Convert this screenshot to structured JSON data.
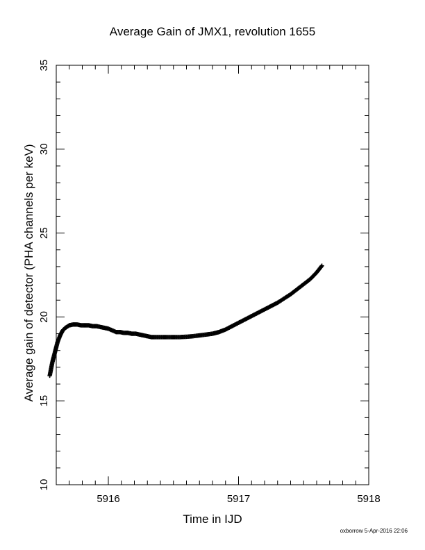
{
  "chart_data": {
    "type": "scatter",
    "title": "Average Gain of JMX1, revolution 1655",
    "xlabel": "Time in IJD",
    "ylabel": "Average gain of detector (PHA channels per keV)",
    "xlim": [
      5915.6,
      5918
    ],
    "ylim": [
      10,
      35
    ],
    "x_ticks": [
      5916,
      5917,
      5918
    ],
    "y_ticks": [
      10,
      15,
      20,
      25,
      30,
      35
    ],
    "marker": "plus",
    "color": "#000000",
    "grid": false,
    "legend": "none",
    "series": [
      {
        "x": [
          5915.55,
          5915.57,
          5915.59,
          5915.61,
          5915.63,
          5915.65,
          5915.67,
          5915.7,
          5915.73,
          5915.76,
          5915.79,
          5915.82,
          5915.85,
          5915.88,
          5915.91,
          5915.94,
          5915.97,
          5916.0,
          5916.03,
          5916.06,
          5916.09,
          5916.12,
          5916.15,
          5916.18,
          5916.21,
          5916.24,
          5916.27,
          5916.3,
          5916.33,
          5916.36,
          5916.4,
          5916.45,
          5916.5,
          5916.55,
          5916.6,
          5916.65,
          5916.7,
          5916.75,
          5916.8,
          5916.85,
          5916.9,
          5916.95,
          5917.0,
          5917.05,
          5917.1,
          5917.15,
          5917.2,
          5917.25,
          5917.3,
          5917.35,
          5917.4,
          5917.45,
          5917.5,
          5917.55,
          5917.6,
          5917.64
        ],
        "y": [
          16.5,
          17.3,
          17.9,
          18.5,
          18.9,
          19.2,
          19.35,
          19.5,
          19.55,
          19.55,
          19.5,
          19.5,
          19.5,
          19.45,
          19.45,
          19.4,
          19.35,
          19.3,
          19.2,
          19.1,
          19.1,
          19.05,
          19.05,
          19.0,
          19.0,
          18.95,
          18.9,
          18.85,
          18.8,
          18.8,
          18.8,
          18.8,
          18.8,
          18.8,
          18.82,
          18.85,
          18.9,
          18.95,
          19.0,
          19.1,
          19.25,
          19.45,
          19.65,
          19.85,
          20.05,
          20.25,
          20.45,
          20.65,
          20.85,
          21.1,
          21.35,
          21.65,
          21.95,
          22.25,
          22.65,
          23.05
        ]
      }
    ]
  },
  "text": {
    "title": "Average Gain of JMX1, revolution 1655",
    "xlabel": "Time in IJD",
    "ylabel": "Average gain of detector (PHA channels per keV)",
    "footer": "oxborrow  5-Apr-2016 22:06"
  }
}
